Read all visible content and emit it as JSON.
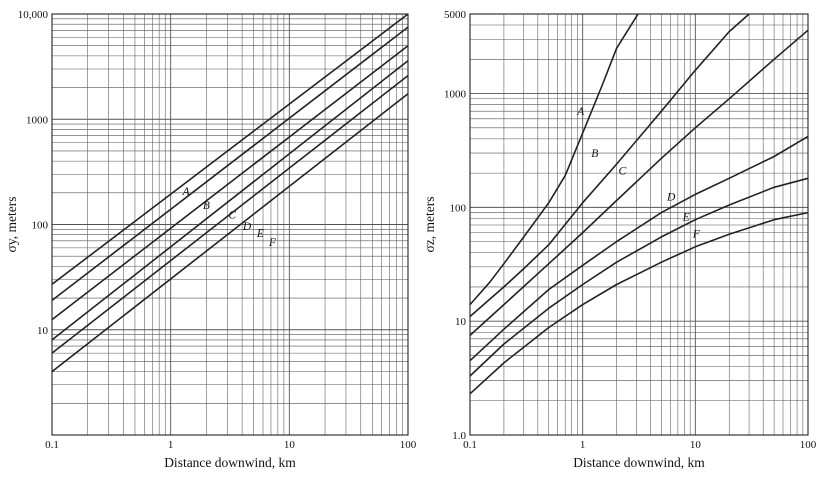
{
  "chart_data": [
    {
      "type": "line",
      "x_scale": "log",
      "y_scale": "log",
      "grid": true,
      "xlabel": "Distance downwind, km",
      "ylabel": "σy, meters",
      "xlim": [
        0.1,
        100
      ],
      "ylim": [
        1,
        10000
      ],
      "x_tick_labels": [
        "0.1",
        "1",
        "10",
        "100"
      ],
      "x_tick_values": [
        0.1,
        1,
        10,
        100
      ],
      "y_tick_labels": [
        "10",
        "100",
        "1000",
        "10,000"
      ],
      "y_tick_values": [
        10,
        100,
        1000,
        10000
      ],
      "line_color": "#222222",
      "grid_color": "#555555",
      "series": [
        {
          "name": "A",
          "x": [
            0.1,
            100
          ],
          "y": [
            27,
            10000
          ],
          "label_at": [
            1.35,
            207
          ]
        },
        {
          "name": "B",
          "x": [
            0.1,
            100
          ],
          "y": [
            19,
            7500
          ],
          "label_at": [
            2.0,
            153
          ]
        },
        {
          "name": "C",
          "x": [
            0.1,
            100
          ],
          "y": [
            12.5,
            5000
          ],
          "label_at": [
            3.3,
            125
          ]
        },
        {
          "name": "D",
          "x": [
            0.1,
            100
          ],
          "y": [
            8,
            3600
          ],
          "label_at": [
            4.4,
            97
          ]
        },
        {
          "name": "E",
          "x": [
            0.1,
            100
          ],
          "y": [
            6,
            2600
          ],
          "label_at": [
            5.7,
            83
          ]
        },
        {
          "name": "F",
          "x": [
            0.1,
            100
          ],
          "y": [
            4,
            1750
          ],
          "label_at": [
            7.2,
            68
          ]
        }
      ]
    },
    {
      "type": "line",
      "x_scale": "log",
      "y_scale": "log",
      "grid": true,
      "xlabel": "Distance downwind, km",
      "ylabel": "σz, meters",
      "xlim": [
        0.1,
        100
      ],
      "ylim": [
        1,
        5000
      ],
      "x_tick_labels": [
        "0.1",
        "1",
        "10",
        "100"
      ],
      "x_tick_values": [
        0.1,
        1,
        10,
        100
      ],
      "y_tick_labels": [
        "1.0",
        "10",
        "100",
        "1000",
        "5000"
      ],
      "y_tick_values": [
        1,
        10,
        100,
        1000,
        5000
      ],
      "line_color": "#222222",
      "grid_color": "#555555",
      "series": [
        {
          "name": "A",
          "x": [
            0.1,
            0.15,
            0.2,
            0.3,
            0.5,
            0.7,
            1,
            1.5,
            2,
            3.1
          ],
          "y": [
            14,
            22,
            32,
            55,
            110,
            190,
            450,
            1200,
            2500,
            5000
          ],
          "label_at": [
            0.96,
            700
          ]
        },
        {
          "name": "B",
          "x": [
            0.1,
            0.2,
            0.3,
            0.5,
            1,
            2,
            5,
            10,
            20,
            30
          ],
          "y": [
            11,
            20,
            29,
            47,
            110,
            240,
            700,
            1600,
            3500,
            5000
          ],
          "label_at": [
            1.28,
            300
          ]
        },
        {
          "name": "C",
          "x": [
            0.1,
            0.2,
            0.5,
            1,
            2,
            5,
            10,
            20,
            50,
            100
          ],
          "y": [
            7.5,
            14,
            32,
            60,
            115,
            270,
            500,
            900,
            2000,
            3600
          ],
          "label_at": [
            2.25,
            210
          ]
        },
        {
          "name": "D",
          "x": [
            0.1,
            0.2,
            0.5,
            1,
            2,
            5,
            10,
            20,
            50,
            100
          ],
          "y": [
            4.5,
            8.5,
            19,
            31,
            50,
            90,
            130,
            180,
            280,
            420
          ],
          "label_at": [
            6.1,
            125
          ]
        },
        {
          "name": "E",
          "x": [
            0.1,
            0.2,
            0.5,
            1,
            2,
            5,
            10,
            20,
            50,
            100
          ],
          "y": [
            3.3,
            6.3,
            13,
            21,
            33,
            55,
            78,
            105,
            150,
            180
          ],
          "label_at": [
            8.3,
            83
          ]
        },
        {
          "name": "F",
          "x": [
            0.1,
            0.2,
            0.5,
            1,
            2,
            5,
            10,
            20,
            50,
            100
          ],
          "y": [
            2.3,
            4.3,
            8.8,
            14,
            21,
            33,
            45,
            58,
            78,
            90
          ],
          "label_at": [
            10.2,
            59
          ]
        }
      ]
    }
  ]
}
